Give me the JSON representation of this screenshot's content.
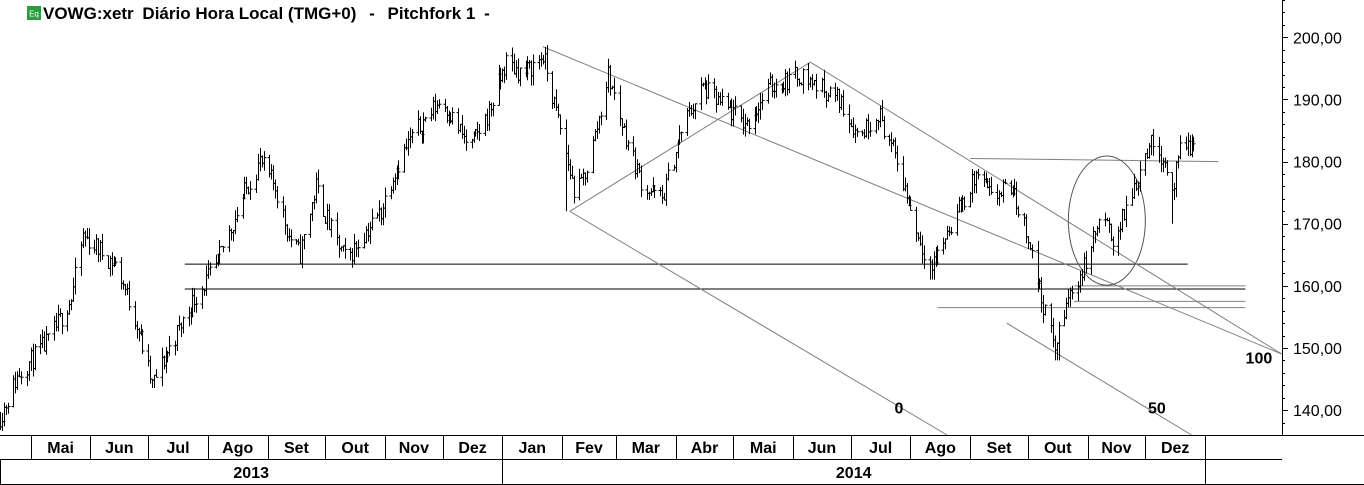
{
  "header": {
    "badge": "Eq",
    "symbol": "VOWG:xetr",
    "title_rest": "Diário Hora Local (TMG+0)",
    "study": "Pitchfork 1"
  },
  "colors": {
    "price": "#000000",
    "study_lines": "#808080",
    "badge_bg": "#2a9d3c",
    "grid": "#000000"
  },
  "chart_data": {
    "type": "bar",
    "title": "VOWG:xetr Diário Hora Local (TMG+0) - Pitchfork 1",
    "ylim": [
      136,
      206
    ],
    "yticks": [
      "140,00",
      "150,00",
      "160,00",
      "170,00",
      "180,00",
      "190,00",
      "200,00"
    ],
    "ytick_values": [
      140,
      150,
      160,
      170,
      180,
      190,
      200
    ],
    "xlim": [
      "2013-04-15",
      "2015-02-10"
    ],
    "months": [
      {
        "label": "Mai",
        "start": "2013-05-01"
      },
      {
        "label": "Jun",
        "start": "2013-06-01"
      },
      {
        "label": "Jul",
        "start": "2013-07-01"
      },
      {
        "label": "Ago",
        "start": "2013-08-01"
      },
      {
        "label": "Set",
        "start": "2013-09-01"
      },
      {
        "label": "Out",
        "start": "2013-10-01"
      },
      {
        "label": "Nov",
        "start": "2013-11-01"
      },
      {
        "label": "Dez",
        "start": "2013-12-01"
      },
      {
        "label": "Jan",
        "start": "2014-01-01"
      },
      {
        "label": "Fev",
        "start": "2014-02-01"
      },
      {
        "label": "Mar",
        "start": "2014-03-01"
      },
      {
        "label": "Abr",
        "start": "2014-04-01"
      },
      {
        "label": "Mai",
        "start": "2014-05-01"
      },
      {
        "label": "Jun",
        "start": "2014-06-01"
      },
      {
        "label": "Jul",
        "start": "2014-07-01"
      },
      {
        "label": "Ago",
        "start": "2014-08-01"
      },
      {
        "label": "Set",
        "start": "2014-09-01"
      },
      {
        "label": "Out",
        "start": "2014-10-01"
      },
      {
        "label": "Nov",
        "start": "2014-11-01"
      },
      {
        "label": "Dez",
        "start": "2014-12-01"
      },
      {
        "label": "",
        "start": "2015-01-01"
      }
    ],
    "years": [
      {
        "label": "2013",
        "start": "2013-04-15",
        "end": "2014-01-01"
      },
      {
        "label": "2014",
        "start": "2014-01-01",
        "end": "2015-01-01"
      }
    ],
    "price_path": [
      [
        "2013-04-15",
        139
      ],
      [
        "2013-04-25",
        146
      ],
      [
        "2013-05-10",
        151
      ],
      [
        "2013-05-22",
        158
      ],
      [
        "2013-05-28",
        168
      ],
      [
        "2013-06-05",
        166
      ],
      [
        "2013-06-15",
        163
      ],
      [
        "2013-06-25",
        154
      ],
      [
        "2013-07-03",
        144
      ],
      [
        "2013-07-12",
        150
      ],
      [
        "2013-07-25",
        158
      ],
      [
        "2013-08-05",
        163
      ],
      [
        "2013-08-20",
        175
      ],
      [
        "2013-08-28",
        180
      ],
      [
        "2013-09-05",
        176
      ],
      [
        "2013-09-12",
        168
      ],
      [
        "2013-09-18",
        165
      ],
      [
        "2013-09-26",
        176
      ],
      [
        "2013-10-05",
        168
      ],
      [
        "2013-10-12",
        164
      ],
      [
        "2013-10-20",
        168
      ],
      [
        "2013-10-30",
        172
      ],
      [
        "2013-11-05",
        178
      ],
      [
        "2013-11-15",
        184
      ],
      [
        "2013-11-30",
        190
      ],
      [
        "2013-12-08",
        186
      ],
      [
        "2013-12-15",
        182
      ],
      [
        "2013-12-25",
        188
      ],
      [
        "2014-01-03",
        196
      ],
      [
        "2014-01-12",
        194
      ],
      [
        "2014-01-22",
        197
      ],
      [
        "2014-02-01",
        184
      ],
      [
        "2014-02-08",
        174
      ],
      [
        "2014-02-15",
        180
      ],
      [
        "2014-02-25",
        194
      ],
      [
        "2014-03-05",
        185
      ],
      [
        "2014-03-15",
        176
      ],
      [
        "2014-03-25",
        174
      ],
      [
        "2014-04-05",
        186
      ],
      [
        "2014-04-15",
        192
      ],
      [
        "2014-04-25",
        189
      ],
      [
        "2014-05-08",
        186
      ],
      [
        "2014-05-20",
        192
      ],
      [
        "2014-06-05",
        194
      ],
      [
        "2014-06-15",
        192
      ],
      [
        "2014-06-25",
        190
      ],
      [
        "2014-07-05",
        184
      ],
      [
        "2014-07-15",
        188
      ],
      [
        "2014-07-25",
        180
      ],
      [
        "2014-08-05",
        168
      ],
      [
        "2014-08-12",
        163
      ],
      [
        "2014-08-22",
        170
      ],
      [
        "2014-09-05",
        178
      ],
      [
        "2014-09-12",
        174
      ],
      [
        "2014-09-22",
        176
      ],
      [
        "2014-10-01",
        168
      ],
      [
        "2014-10-08",
        158
      ],
      [
        "2014-10-15",
        150
      ],
      [
        "2014-10-22",
        158
      ],
      [
        "2014-10-30",
        163
      ],
      [
        "2014-11-08",
        171
      ],
      [
        "2014-11-15",
        167
      ],
      [
        "2014-11-25",
        176
      ],
      [
        "2014-12-03",
        183
      ],
      [
        "2014-12-10",
        181
      ],
      [
        "2014-12-15",
        175
      ],
      [
        "2014-12-20",
        183
      ],
      [
        "2014-12-28",
        182
      ]
    ],
    "price_spikes": [
      [
        "2014-02-02",
        172
      ],
      [
        "2014-08-12",
        161
      ],
      [
        "2014-10-16",
        148
      ],
      [
        "2014-12-14",
        170
      ]
    ],
    "study_lines": [
      {
        "from": [
          "2013-07-20",
          163.5
        ],
        "to": [
          "2014-12-23",
          163.5
        ],
        "color": "#000000"
      },
      {
        "from": [
          "2013-07-20",
          159.5
        ],
        "to": [
          "2015-01-22",
          159.5
        ],
        "color": "#000000"
      },
      {
        "from": [
          "2014-09-01",
          180.5
        ],
        "to": [
          "2015-01-08",
          180.0
        ],
        "color": "#808080"
      },
      {
        "from": [
          "2014-08-15",
          156.5
        ],
        "to": [
          "2015-01-22",
          156.5
        ],
        "color": "#808080"
      },
      {
        "from": [
          "2014-10-25",
          157.5
        ],
        "to": [
          "2015-01-22",
          157.5
        ],
        "color": "#808080"
      },
      {
        "from": [
          "2014-10-25",
          160.0
        ],
        "to": [
          "2015-01-22",
          160.0
        ],
        "color": "#808080"
      },
      {
        "from": [
          "2014-01-22",
          198.5
        ],
        "to": [
          "2015-02-10",
          149.0
        ],
        "color": "#808080"
      },
      {
        "from": [
          "2014-02-05",
          172.0
        ],
        "to": [
          "2014-06-10",
          196.0
        ],
        "color": "#808080"
      },
      {
        "from": [
          "2014-06-10",
          196.0
        ],
        "to": [
          "2015-02-10",
          149.0
        ],
        "color": "#808080"
      },
      {
        "from": [
          "2014-02-05",
          172.0
        ],
        "to": [
          "2014-08-20",
          136.0
        ],
        "color": "#808080"
      },
      {
        "from": [
          "2014-09-20",
          154.0
        ],
        "to": [
          "2014-12-25",
          136.0
        ],
        "color": "#808080"
      }
    ],
    "ellipse": {
      "cx": "2014-11-11",
      "cy": 170.5,
      "rx_days": 20,
      "ry": 10.4
    },
    "annotations": [
      {
        "text": "0",
        "x": "2014-07-26",
        "y": 139.5
      },
      {
        "text": "50",
        "x": "2014-12-07",
        "y": 139.5
      },
      {
        "text": "100",
        "x": "2015-01-29",
        "y": 147.5
      }
    ]
  }
}
